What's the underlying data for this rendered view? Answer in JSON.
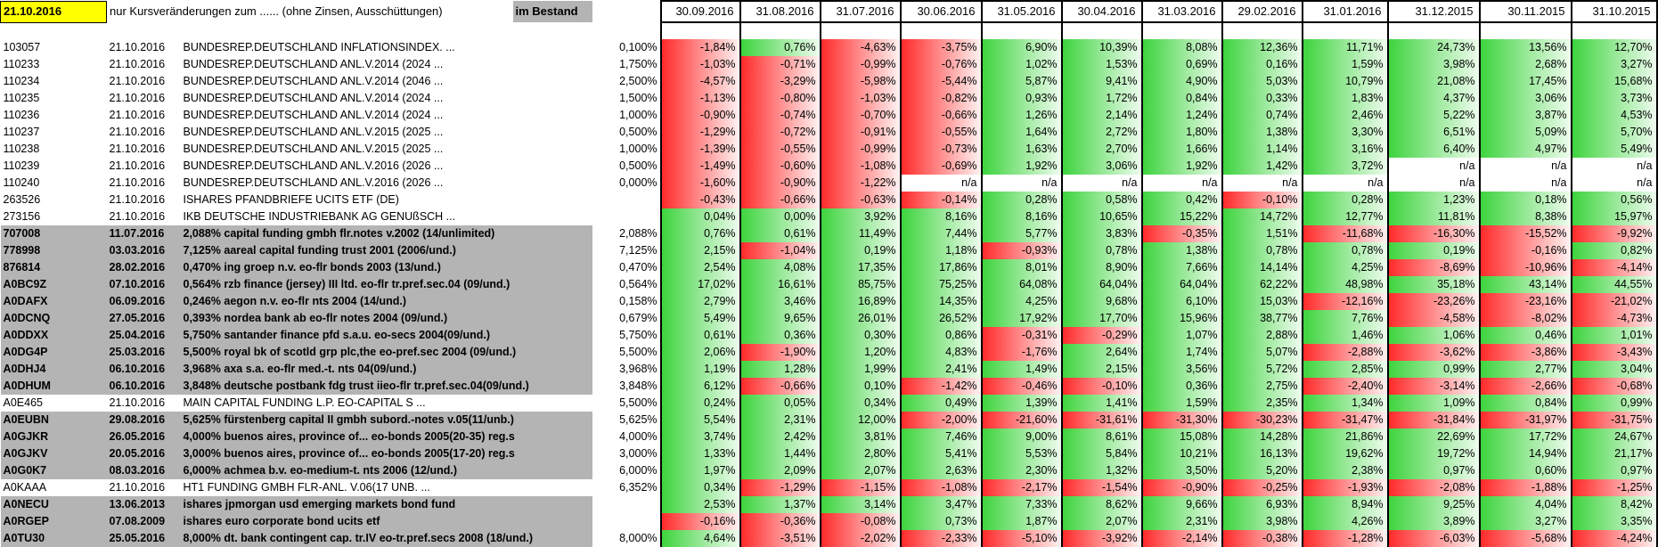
{
  "header": {
    "date": "21.10.2016",
    "note": "nur Kursveränderungen zum ......  (ohne Zinsen, Ausschüttungen)",
    "holding_label": "im Bestand",
    "periods": [
      "30.09.2016",
      "31.08.2016",
      "31.07.2016",
      "30.06.2016",
      "31.05.2016",
      "30.04.2016",
      "31.03.2016",
      "29.02.2016",
      "31.01.2016",
      "31.12.2015",
      "30.11.2015",
      "31.10.2015"
    ]
  },
  "rows": [
    {
      "id": "103057",
      "date": "21.10.2016",
      "name": "BUNDESREP.DEUTSCHLAND INFLATIONSINDEX. ...",
      "holding": "0,100%",
      "highlight": false,
      "changes": [
        "-1,84%",
        "0,76%",
        "-4,63%",
        "-3,75%",
        "6,90%",
        "10,39%",
        "8,08%",
        "12,36%",
        "11,71%",
        "24,73%",
        "13,56%",
        "12,70%"
      ]
    },
    {
      "id": "110233",
      "date": "21.10.2016",
      "name": "BUNDESREP.DEUTSCHLAND ANL.V.2014 (2024 ...",
      "holding": "1,750%",
      "highlight": false,
      "changes": [
        "-1,03%",
        "-0,71%",
        "-0,99%",
        "-0,76%",
        "1,02%",
        "1,53%",
        "0,69%",
        "0,16%",
        "1,59%",
        "3,98%",
        "2,68%",
        "3,27%"
      ]
    },
    {
      "id": "110234",
      "date": "21.10.2016",
      "name": "BUNDESREP.DEUTSCHLAND ANL.V.2014 (2046 ...",
      "holding": "2,500%",
      "highlight": false,
      "changes": [
        "-4,57%",
        "-3,29%",
        "-5,98%",
        "-5,44%",
        "5,87%",
        "9,41%",
        "4,90%",
        "5,03%",
        "10,79%",
        "21,08%",
        "17,45%",
        "15,68%"
      ]
    },
    {
      "id": "110235",
      "date": "21.10.2016",
      "name": "BUNDESREP.DEUTSCHLAND ANL.V.2014 (2024 ...",
      "holding": "1,500%",
      "highlight": false,
      "changes": [
        "-1,13%",
        "-0,80%",
        "-1,03%",
        "-0,82%",
        "0,93%",
        "1,72%",
        "0,84%",
        "0,33%",
        "1,83%",
        "4,37%",
        "3,06%",
        "3,73%"
      ]
    },
    {
      "id": "110236",
      "date": "21.10.2016",
      "name": "BUNDESREP.DEUTSCHLAND ANL.V.2014 (2024 ...",
      "holding": "1,000%",
      "highlight": false,
      "changes": [
        "-0,90%",
        "-0,74%",
        "-0,70%",
        "-0,66%",
        "1,26%",
        "2,14%",
        "1,24%",
        "0,74%",
        "2,46%",
        "5,22%",
        "3,87%",
        "4,53%"
      ]
    },
    {
      "id": "110237",
      "date": "21.10.2016",
      "name": "BUNDESREP.DEUTSCHLAND ANL.V.2015 (2025 ...",
      "holding": "0,500%",
      "highlight": false,
      "changes": [
        "-1,29%",
        "-0,72%",
        "-0,91%",
        "-0,55%",
        "1,64%",
        "2,72%",
        "1,80%",
        "1,38%",
        "3,30%",
        "6,51%",
        "5,09%",
        "5,70%"
      ]
    },
    {
      "id": "110238",
      "date": "21.10.2016",
      "name": "BUNDESREP.DEUTSCHLAND ANL.V.2015 (2025 ...",
      "holding": "1,000%",
      "highlight": false,
      "changes": [
        "-1,39%",
        "-0,55%",
        "-0,99%",
        "-0,73%",
        "1,63%",
        "2,70%",
        "1,66%",
        "1,14%",
        "3,16%",
        "6,40%",
        "4,97%",
        "5,49%"
      ]
    },
    {
      "id": "110239",
      "date": "21.10.2016",
      "name": "BUNDESREP.DEUTSCHLAND ANL.V.2016 (2026 ...",
      "holding": "0,500%",
      "highlight": false,
      "changes": [
        "-1,49%",
        "-0,60%",
        "-1,08%",
        "-0,69%",
        "1,92%",
        "3,06%",
        "1,92%",
        "1,42%",
        "3,72%",
        "n/a",
        "n/a",
        "n/a"
      ]
    },
    {
      "id": "110240",
      "date": "21.10.2016",
      "name": "BUNDESREP.DEUTSCHLAND ANL.V.2016 (2026 ...",
      "holding": "0,000%",
      "highlight": false,
      "changes": [
        "-1,60%",
        "-0,90%",
        "-1,22%",
        "n/a",
        "n/a",
        "n/a",
        "n/a",
        "n/a",
        "n/a",
        "n/a",
        "n/a",
        "n/a"
      ]
    },
    {
      "id": "263526",
      "date": "21.10.2016",
      "name": "ISHARES PFANDBRIEFE UCITS ETF (DE)",
      "highlight": false,
      "changes": [
        "-0,43%",
        "-0,66%",
        "-0,63%",
        "-0,14%",
        "0,28%",
        "0,58%",
        "0,42%",
        "-0,10%",
        "0,28%",
        "1,23%",
        "0,18%",
        "0,56%"
      ]
    },
    {
      "id": "273156",
      "date": "21.10.2016",
      "name": "IKB DEUTSCHE INDUSTRIEBANK AG GENUßSCH ...",
      "highlight": false,
      "changes": [
        "0,04%",
        "0,00%",
        "3,92%",
        "8,16%",
        "8,16%",
        "10,65%",
        "15,22%",
        "14,72%",
        "12,77%",
        "11,81%",
        "8,38%",
        "15,97%"
      ]
    },
    {
      "id": "707008",
      "date": "11.07.2016",
      "name": "2,088% capital funding gmbh flr.notes v.2002 (14/unlimited)",
      "holding": "2,088%",
      "highlight": true,
      "changes": [
        "0,76%",
        "0,61%",
        "11,49%",
        "7,44%",
        "5,77%",
        "3,83%",
        "-0,35%",
        "1,51%",
        "-11,68%",
        "-16,30%",
        "-15,52%",
        "-9,92%"
      ]
    },
    {
      "id": "778998",
      "date": "03.03.2016",
      "name": "7,125% aareal capital funding trust 2001 (2006/und.)",
      "holding": "7,125%",
      "highlight": true,
      "changes": [
        "2,15%",
        "-1,04%",
        "0,19%",
        "1,18%",
        "-0,93%",
        "0,78%",
        "1,38%",
        "0,78%",
        "0,78%",
        "0,19%",
        "-0,16%",
        "0,82%"
      ]
    },
    {
      "id": "876814",
      "date": "28.02.2016",
      "name": "0,470% ing groep n.v. eo-flr bonds 2003 (13/und.)",
      "holding": "0,470%",
      "highlight": true,
      "changes": [
        "2,54%",
        "4,08%",
        "17,35%",
        "17,86%",
        "8,01%",
        "8,90%",
        "7,66%",
        "14,14%",
        "4,25%",
        "-8,69%",
        "-10,96%",
        "-4,14%"
      ]
    },
    {
      "id": "A0BC9Z",
      "date": "07.10.2016",
      "name": "0,564% rzb finance (jersey) III ltd. eo-flr tr.pref.sec.04 (09/und.)",
      "holding": "0,564%",
      "highlight": true,
      "changes": [
        "17,02%",
        "16,61%",
        "85,75%",
        "75,25%",
        "64,08%",
        "64,04%",
        "64,04%",
        "62,22%",
        "48,98%",
        "35,18%",
        "43,14%",
        "44,55%"
      ]
    },
    {
      "id": "A0DAFX",
      "date": "06.09.2016",
      "name": "0,246% aegon n.v. eo-flr nts 2004 (14/und.)",
      "holding": "0,158%",
      "highlight": true,
      "changes": [
        "2,79%",
        "3,46%",
        "16,89%",
        "14,35%",
        "4,25%",
        "9,68%",
        "6,10%",
        "15,03%",
        "-12,16%",
        "-23,26%",
        "-23,16%",
        "-21,02%"
      ]
    },
    {
      "id": "A0DCNQ",
      "date": "27.05.2016",
      "name": "0,393% nordea bank ab eo-flr notes 2004 (09/und.)",
      "holding": "0,679%",
      "highlight": true,
      "changes": [
        "5,49%",
        "9,65%",
        "26,01%",
        "26,52%",
        "17,92%",
        "17,70%",
        "15,96%",
        "38,77%",
        "7,76%",
        "-4,58%",
        "-8,02%",
        "-4,73%"
      ]
    },
    {
      "id": "A0DDXX",
      "date": "25.04.2016",
      "name": "5,750% santander finance pfd s.a.u. eo-secs 2004(09/und.)",
      "holding": "5,750%",
      "highlight": true,
      "changes": [
        "0,61%",
        "0,36%",
        "0,30%",
        "0,86%",
        "-0,31%",
        "-0,29%",
        "1,07%",
        "2,88%",
        "1,46%",
        "1,06%",
        "0,46%",
        "1,01%"
      ]
    },
    {
      "id": "A0DG4P",
      "date": "25.03.2016",
      "name": "5,500% royal bk of scotld grp plc,the eo-pref.sec 2004 (09/und.)",
      "holding": "5,500%",
      "highlight": true,
      "changes": [
        "2,06%",
        "-1,90%",
        "1,20%",
        "4,83%",
        "-1,76%",
        "2,64%",
        "1,74%",
        "5,07%",
        "-2,88%",
        "-3,62%",
        "-3,86%",
        "-3,43%"
      ]
    },
    {
      "id": "A0DHJ4",
      "date": "06.10.2016",
      "name": "3,968% axa s.a. eo-flr med.-t. nts 04(09/und.)",
      "holding": "3,968%",
      "highlight": true,
      "changes": [
        "1,19%",
        "1,28%",
        "1,99%",
        "2,41%",
        "1,49%",
        "2,15%",
        "3,56%",
        "5,72%",
        "2,85%",
        "0,99%",
        "2,77%",
        "3,04%"
      ]
    },
    {
      "id": "A0DHUM",
      "date": "06.10.2016",
      "name": "3,848% deutsche postbank fdg trust iieo-flr tr.pref.sec.04(09/und.)",
      "holding": "3,848%",
      "highlight": true,
      "changes": [
        "6,12%",
        "-0,66%",
        "0,10%",
        "-1,42%",
        "-0,46%",
        "-0,10%",
        "0,36%",
        "2,75%",
        "-2,40%",
        "-3,14%",
        "-2,66%",
        "-0,68%"
      ]
    },
    {
      "id": "A0E465",
      "date": "21.10.2016",
      "name": "MAIN CAPITAL FUNDING L.P. EO-CAPITAL S ...",
      "holding": "5,500%",
      "highlight": false,
      "changes": [
        "0,24%",
        "0,05%",
        "0,34%",
        "0,49%",
        "1,39%",
        "1,41%",
        "1,59%",
        "2,35%",
        "1,34%",
        "1,09%",
        "0,84%",
        "0,99%"
      ]
    },
    {
      "id": "A0EUBN",
      "date": "29.08.2016",
      "name": "5,625% fürstenberg capital II gmbh subord.-notes v.05(11/unb.)",
      "holding": "5,625%",
      "highlight": true,
      "changes": [
        "5,54%",
        "2,31%",
        "12,00%",
        "-2,00%",
        "-21,60%",
        "-31,61%",
        "-31,30%",
        "-30,23%",
        "-31,47%",
        "-31,84%",
        "-31,97%",
        "-31,75%"
      ]
    },
    {
      "id": "A0GJKR",
      "date": "26.05.2016",
      "name": "4,000% buenos aires, province of... eo-bonds 2005(20-35) reg.s",
      "holding": "4,000%",
      "highlight": true,
      "changes": [
        "3,74%",
        "2,42%",
        "3,81%",
        "7,46%",
        "9,00%",
        "8,61%",
        "15,08%",
        "14,28%",
        "21,86%",
        "22,69%",
        "17,72%",
        "24,67%"
      ]
    },
    {
      "id": "A0GJKV",
      "date": "20.05.2016",
      "name": "3,000% buenos aires, province of... eo-bonds 2005(17-20) reg.s",
      "holding": "3,000%",
      "highlight": true,
      "changes": [
        "1,33%",
        "1,44%",
        "2,80%",
        "5,41%",
        "5,53%",
        "5,84%",
        "10,21%",
        "16,13%",
        "19,62%",
        "19,72%",
        "14,94%",
        "21,17%"
      ]
    },
    {
      "id": "A0G0K7",
      "date": "08.03.2016",
      "name": "6,000% achmea b.v. eo-medium-t. nts 2006 (12/und.)",
      "holding": "6,000%",
      "highlight": true,
      "changes": [
        "1,97%",
        "2,09%",
        "2,07%",
        "2,63%",
        "2,30%",
        "1,32%",
        "3,50%",
        "5,20%",
        "2,38%",
        "0,97%",
        "0,60%",
        "0,97%"
      ]
    },
    {
      "id": "A0KAAA",
      "date": "21.10.2016",
      "name": "HT1 FUNDING GMBH FLR-ANL. V.06(17 UNB. ...",
      "holding": "6,352%",
      "highlight": false,
      "changes": [
        "0,34%",
        "-1,29%",
        "-1,15%",
        "-1,08%",
        "-2,17%",
        "-1,54%",
        "-0,90%",
        "-0,25%",
        "-1,93%",
        "-2,08%",
        "-1,88%",
        "-1,25%"
      ]
    },
    {
      "id": "A0NECU",
      "date": "13.06.2013",
      "name": "ishares jpmorgan usd emerging markets bond fund",
      "highlight": true,
      "changes": [
        "2,53%",
        "1,37%",
        "3,14%",
        "3,47%",
        "7,33%",
        "8,62%",
        "9,66%",
        "6,93%",
        "8,94%",
        "9,25%",
        "4,04%",
        "8,42%"
      ]
    },
    {
      "id": "A0RGEP",
      "date": "07.08.2009",
      "name": "ishares euro corporate bond ucits etf",
      "highlight": true,
      "changes": [
        "-0,16%",
        "-0,36%",
        "-0,08%",
        "0,73%",
        "1,87%",
        "2,07%",
        "2,31%",
        "3,98%",
        "4,26%",
        "3,89%",
        "3,27%",
        "3,35%"
      ]
    },
    {
      "id": "A0TU30",
      "date": "25.05.2016",
      "name": "8,000% dt. bank contingent cap. tr.IV eo-tr.pref.secs 2008 (18/und.)",
      "holding": "8,000%",
      "highlight": true,
      "changes": [
        "4,64%",
        "-3,51%",
        "-2,02%",
        "-2,33%",
        "-5,10%",
        "-3,92%",
        "-2,14%",
        "-0,38%",
        "-1,28%",
        "-6,03%",
        "-5,68%",
        "-4,24%"
      ]
    }
  ]
}
